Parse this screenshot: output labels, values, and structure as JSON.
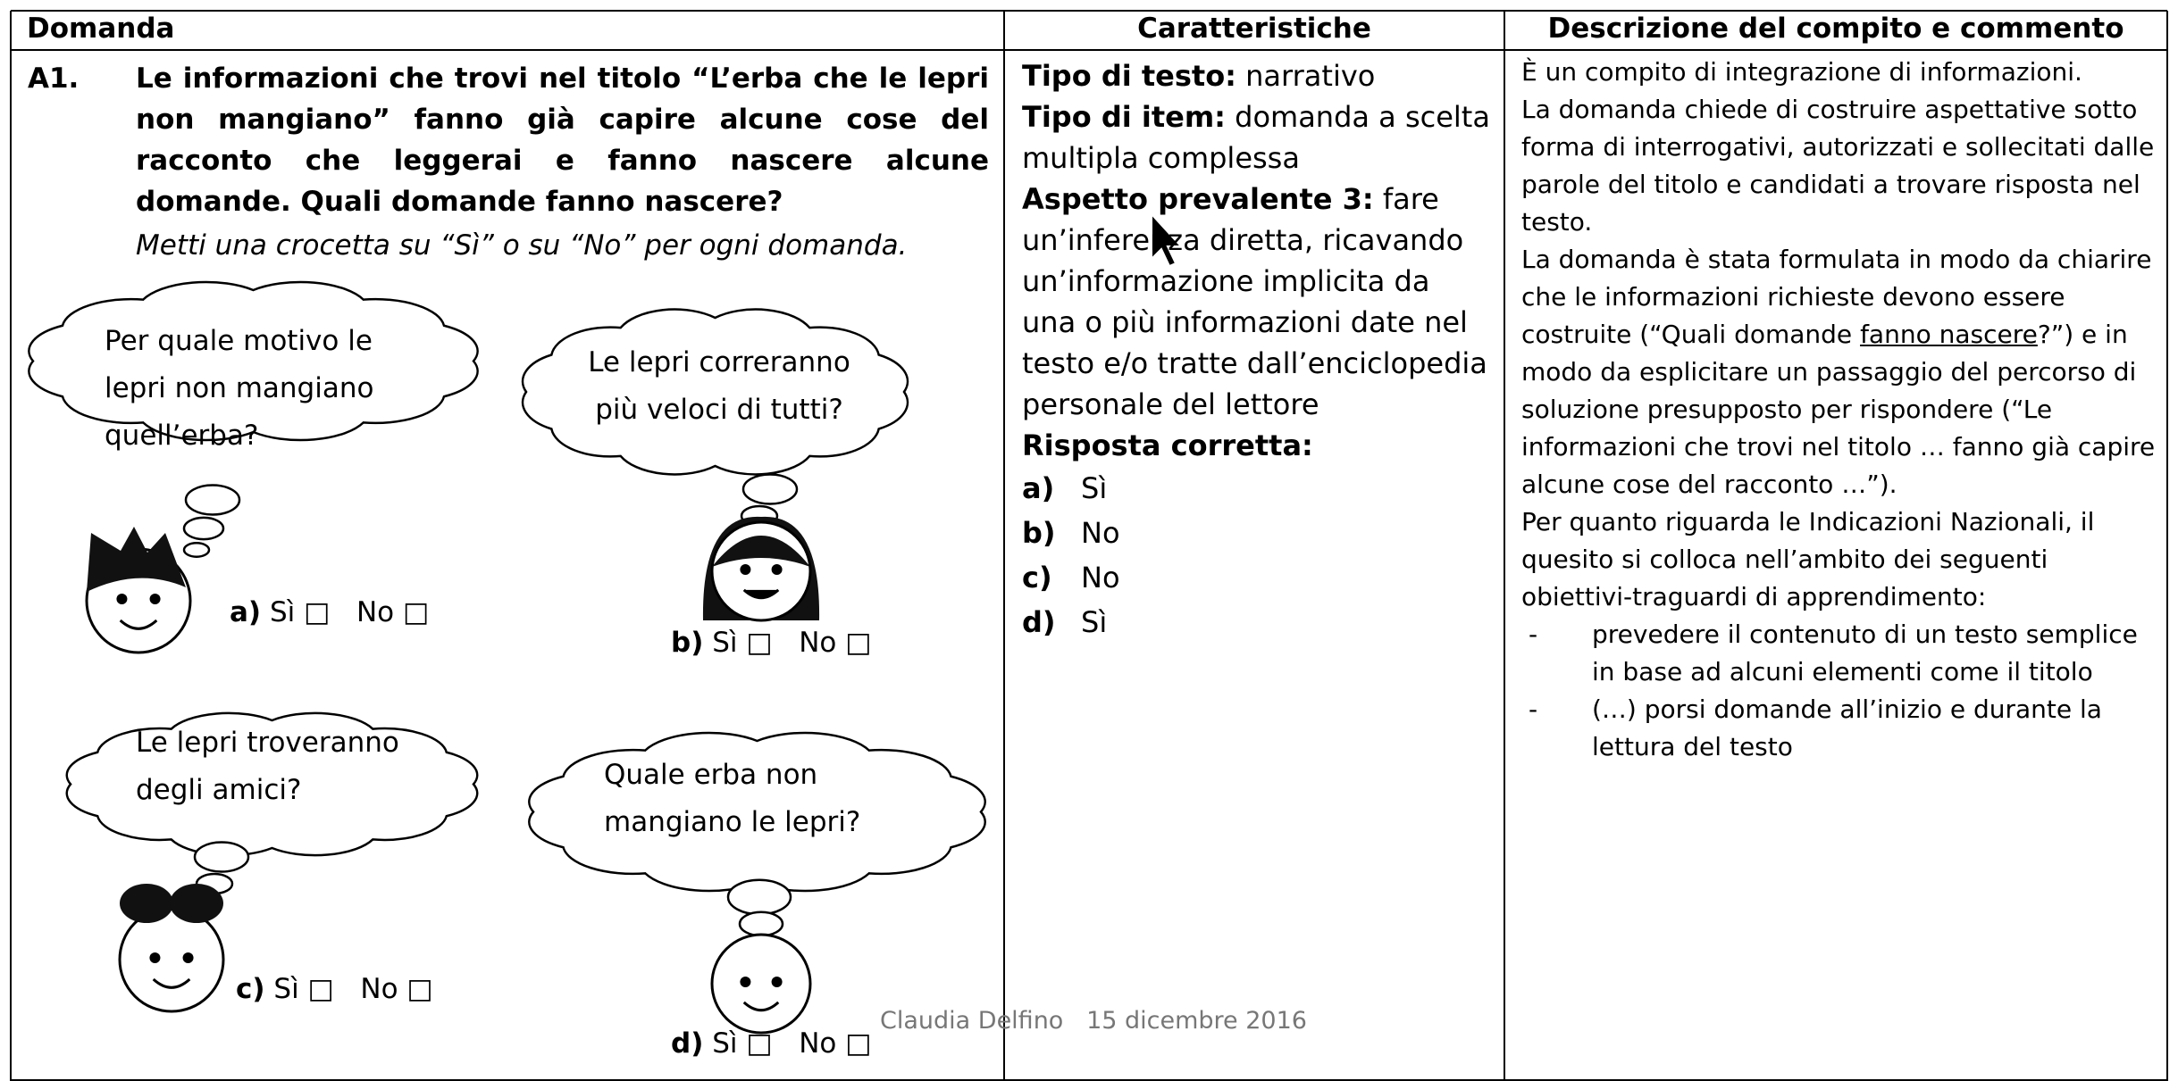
{
  "header": {
    "columns": [
      "Domanda",
      "Caratteristiche",
      "Descrizione del compito e commento"
    ]
  },
  "question": {
    "number": "A1.",
    "text": "Le informazioni che trovi nel titolo “L’erba che le lepri non mangiano” fanno già capire alcune cose del racconto che leggerai e fanno nascere alcune domande. Quali domande fanno nascere?",
    "instruction": "Metti una crocetta su “Sì” o su “No” per ogni domanda.",
    "items": [
      {
        "bubble": "Per quale motivo le lepri non mangiano quell’erba?",
        "letter": "a)",
        "yes": "Sì □",
        "no": "No □"
      },
      {
        "bubble": "Le lepri correranno più veloci di tutti?",
        "letter": "b)",
        "yes": "Sì □",
        "no": "No □"
      },
      {
        "bubble": "Le lepri troveranno degli amici?",
        "letter": "c)",
        "yes": "Sì □",
        "no": "No □"
      },
      {
        "bubble": "Quale erba non mangiano le lepri?",
        "letter": "d)",
        "yes": "Sì □",
        "no": "No □"
      }
    ]
  },
  "characteristics": {
    "rows": [
      {
        "label": "Tipo di testo:",
        "text": "narrativo"
      },
      {
        "label": "Tipo di item:",
        "text": "domanda a scelta multipla complessa"
      },
      {
        "label": "Aspetto prevalente 3:",
        "text": "fare un’inferenza diretta, ricavando un’informazione implicita da una o più informazioni date nel testo e/o tratte dall’enciclopedia personale del lettore"
      }
    ],
    "answer": {
      "label": "Risposta corretta:",
      "items": [
        {
          "letter": "a)",
          "value": "Sì"
        },
        {
          "letter": "b)",
          "value": "No"
        },
        {
          "letter": "c)",
          "value": "No"
        },
        {
          "letter": "d)",
          "value": "Sì"
        }
      ]
    }
  },
  "description": {
    "p1": "È un compito di integrazione di informazioni.",
    "p2": "La domanda chiede di costruire aspettative sotto forma di interrogativi, autorizzati e sollecitati dalle parole del titolo e candidati a trovare risposta nel testo.",
    "p3": {
      "before": "La domanda è stata formulata in modo da chiarire che le informazioni richieste devono essere costruite (“Quali domande ",
      "underlined": "fanno nascere",
      "after": "?”) e in modo da esplicitare un passaggio del percorso di soluzione presupposto per rispondere (“Le informazioni che trovi nel titolo … fanno già capire alcune cose del racconto …”)."
    },
    "p4": "Per quanto riguarda le Indicazioni Nazionali, il quesito si colloca nell’ambito dei seguenti obiettivi-traguardi di apprendimento:",
    "list": [
      {
        "bullet": "-",
        "text": "prevedere il contenuto di un testo semplice in base ad alcuni elementi come il titolo"
      },
      {
        "bullet": "-",
        "text": "(…) porsi domande all’inizio e durante la lettura del testo"
      }
    ]
  },
  "footer": "Claudia Delfino   15 dicembre 2016"
}
